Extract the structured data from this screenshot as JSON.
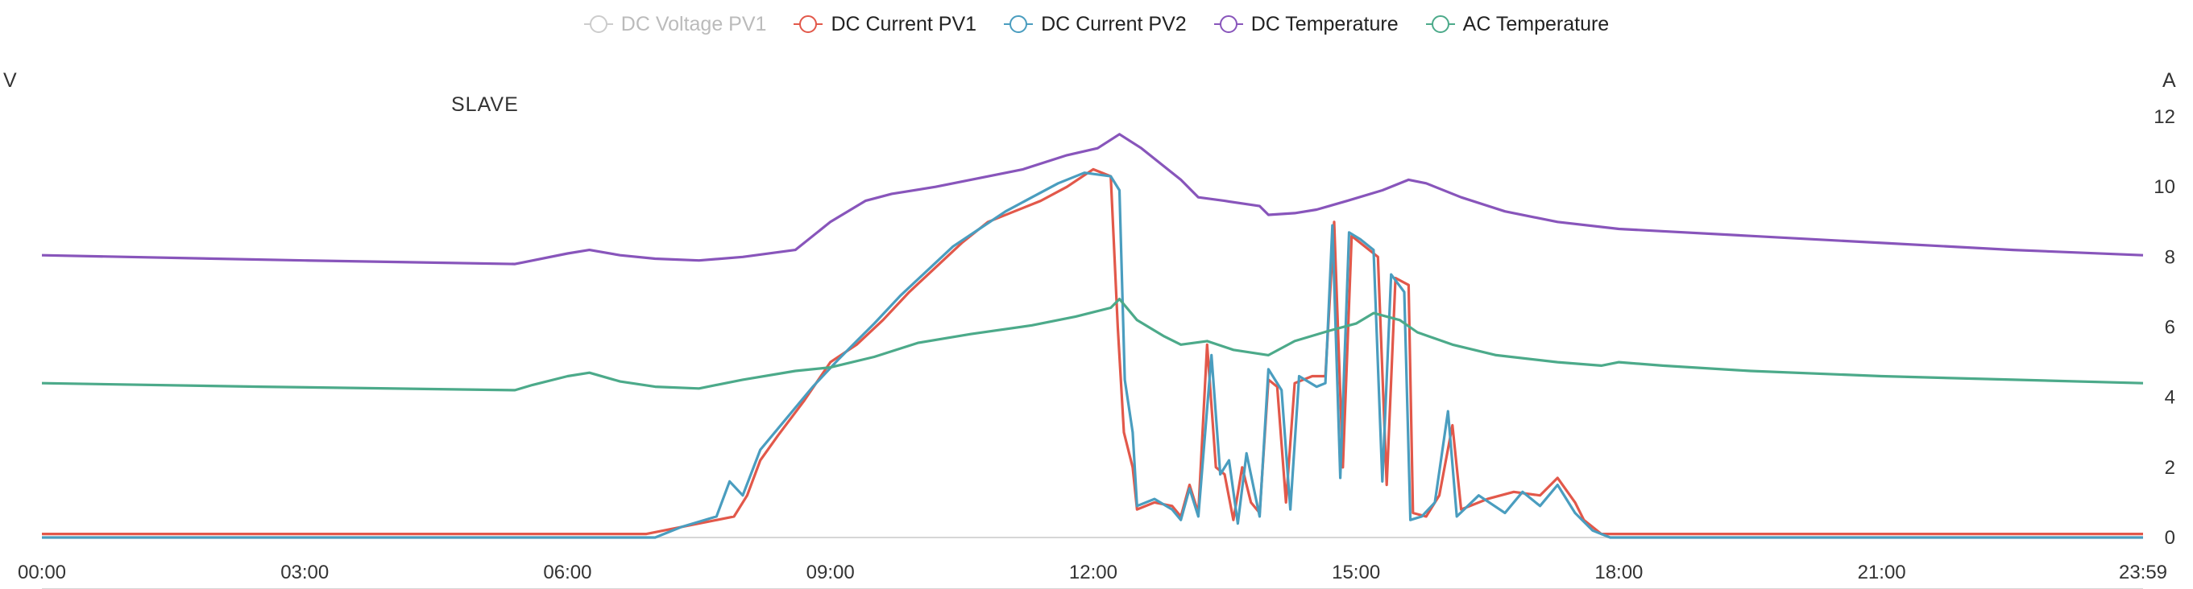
{
  "chart_data": {
    "type": "line",
    "title": "SLAVE",
    "y_left_unit": "V",
    "y_right_unit": "A",
    "x_ticks": [
      "00:00",
      "03:00",
      "06:00",
      "09:00",
      "12:00",
      "15:00",
      "18:00",
      "21:00",
      "23:59"
    ],
    "y_right_ticks": [
      "0",
      "2",
      "4",
      "6",
      "8",
      "10",
      "12"
    ],
    "y_right_range": [
      0,
      12
    ],
    "x_range_hours": [
      0,
      23.983
    ],
    "grid": "x-axis baseline only",
    "legend_position": "top-center",
    "series": [
      {
        "name": "DC Voltage PV1",
        "color": "#cccccc",
        "hidden": true,
        "points": []
      },
      {
        "name": "DC Current PV1",
        "color": "#e2584a",
        "points": [
          [
            0,
            0.1
          ],
          [
            6.9,
            0.1
          ],
          [
            7.2,
            0.25
          ],
          [
            7.5,
            0.4
          ],
          [
            7.9,
            0.6
          ],
          [
            8.05,
            1.2
          ],
          [
            8.2,
            2.2
          ],
          [
            8.4,
            2.9
          ],
          [
            8.7,
            3.9
          ],
          [
            9.0,
            5.0
          ],
          [
            9.3,
            5.5
          ],
          [
            9.6,
            6.2
          ],
          [
            9.9,
            7.0
          ],
          [
            10.2,
            7.7
          ],
          [
            10.5,
            8.4
          ],
          [
            10.8,
            9.0
          ],
          [
            11.1,
            9.3
          ],
          [
            11.4,
            9.6
          ],
          [
            11.7,
            10.0
          ],
          [
            12.0,
            10.5
          ],
          [
            12.2,
            10.3
          ],
          [
            12.28,
            6.0
          ],
          [
            12.35,
            3.0
          ],
          [
            12.45,
            2.0
          ],
          [
            12.5,
            0.8
          ],
          [
            12.7,
            1.0
          ],
          [
            12.9,
            0.9
          ],
          [
            13.0,
            0.6
          ],
          [
            13.1,
            1.5
          ],
          [
            13.2,
            0.7
          ],
          [
            13.3,
            5.5
          ],
          [
            13.4,
            2.0
          ],
          [
            13.5,
            1.8
          ],
          [
            13.6,
            0.5
          ],
          [
            13.7,
            2.0
          ],
          [
            13.8,
            1.0
          ],
          [
            13.9,
            0.7
          ],
          [
            14.0,
            4.5
          ],
          [
            14.1,
            4.3
          ],
          [
            14.2,
            1.0
          ],
          [
            14.3,
            4.4
          ],
          [
            14.5,
            4.6
          ],
          [
            14.65,
            4.6
          ],
          [
            14.75,
            9.0
          ],
          [
            14.85,
            2.0
          ],
          [
            14.95,
            8.6
          ],
          [
            15.1,
            8.3
          ],
          [
            15.25,
            8.0
          ],
          [
            15.35,
            1.5
          ],
          [
            15.45,
            7.4
          ],
          [
            15.6,
            7.2
          ],
          [
            15.65,
            0.7
          ],
          [
            15.8,
            0.6
          ],
          [
            15.95,
            1.2
          ],
          [
            16.1,
            3.2
          ],
          [
            16.2,
            0.8
          ],
          [
            16.5,
            1.1
          ],
          [
            16.8,
            1.3
          ],
          [
            17.1,
            1.2
          ],
          [
            17.3,
            1.7
          ],
          [
            17.5,
            1.0
          ],
          [
            17.6,
            0.5
          ],
          [
            17.8,
            0.1
          ],
          [
            18.2,
            0.1
          ],
          [
            23.983,
            0.1
          ]
        ]
      },
      {
        "name": "DC Current PV2",
        "color": "#4a9dbf",
        "points": [
          [
            0,
            0.0
          ],
          [
            7.0,
            0.0
          ],
          [
            7.3,
            0.3
          ],
          [
            7.7,
            0.6
          ],
          [
            7.85,
            1.6
          ],
          [
            8.0,
            1.2
          ],
          [
            8.2,
            2.5
          ],
          [
            8.5,
            3.4
          ],
          [
            8.8,
            4.3
          ],
          [
            9.1,
            5.1
          ],
          [
            9.3,
            5.6
          ],
          [
            9.5,
            6.1
          ],
          [
            9.8,
            6.9
          ],
          [
            10.1,
            7.6
          ],
          [
            10.4,
            8.3
          ],
          [
            10.7,
            8.8
          ],
          [
            11.0,
            9.3
          ],
          [
            11.3,
            9.7
          ],
          [
            11.6,
            10.1
          ],
          [
            11.9,
            10.4
          ],
          [
            12.2,
            10.3
          ],
          [
            12.3,
            9.9
          ],
          [
            12.36,
            4.5
          ],
          [
            12.45,
            3.0
          ],
          [
            12.5,
            0.9
          ],
          [
            12.7,
            1.1
          ],
          [
            12.9,
            0.8
          ],
          [
            13.0,
            0.5
          ],
          [
            13.1,
            1.4
          ],
          [
            13.2,
            0.6
          ],
          [
            13.35,
            5.2
          ],
          [
            13.45,
            1.8
          ],
          [
            13.55,
            2.2
          ],
          [
            13.65,
            0.4
          ],
          [
            13.75,
            2.4
          ],
          [
            13.9,
            0.6
          ],
          [
            14.0,
            4.8
          ],
          [
            14.15,
            4.2
          ],
          [
            14.25,
            0.8
          ],
          [
            14.35,
            4.6
          ],
          [
            14.55,
            4.3
          ],
          [
            14.65,
            4.4
          ],
          [
            14.73,
            8.9
          ],
          [
            14.82,
            1.7
          ],
          [
            14.92,
            8.7
          ],
          [
            15.05,
            8.5
          ],
          [
            15.2,
            8.2
          ],
          [
            15.3,
            1.6
          ],
          [
            15.4,
            7.5
          ],
          [
            15.55,
            7.0
          ],
          [
            15.62,
            0.5
          ],
          [
            15.75,
            0.6
          ],
          [
            15.9,
            1.0
          ],
          [
            16.05,
            3.6
          ],
          [
            16.15,
            0.6
          ],
          [
            16.4,
            1.2
          ],
          [
            16.7,
            0.7
          ],
          [
            16.9,
            1.3
          ],
          [
            17.1,
            0.9
          ],
          [
            17.3,
            1.5
          ],
          [
            17.5,
            0.7
          ],
          [
            17.7,
            0.2
          ],
          [
            17.9,
            0.0
          ],
          [
            23.983,
            0.0
          ]
        ]
      },
      {
        "name": "DC Temperature",
        "color": "#8855bb",
        "points": [
          [
            0,
            8.05
          ],
          [
            3.0,
            7.9
          ],
          [
            5.4,
            7.8
          ],
          [
            5.5,
            7.85
          ],
          [
            6.0,
            8.1
          ],
          [
            6.25,
            8.2
          ],
          [
            6.6,
            8.05
          ],
          [
            7.0,
            7.95
          ],
          [
            7.5,
            7.9
          ],
          [
            8.0,
            8.0
          ],
          [
            8.6,
            8.2
          ],
          [
            9.0,
            9.0
          ],
          [
            9.4,
            9.6
          ],
          [
            9.7,
            9.8
          ],
          [
            10.2,
            10.0
          ],
          [
            10.7,
            10.25
          ],
          [
            11.2,
            10.5
          ],
          [
            11.7,
            10.9
          ],
          [
            12.05,
            11.1
          ],
          [
            12.3,
            11.5
          ],
          [
            12.55,
            11.1
          ],
          [
            12.8,
            10.6
          ],
          [
            13.0,
            10.2
          ],
          [
            13.2,
            9.7
          ],
          [
            13.5,
            9.6
          ],
          [
            13.9,
            9.45
          ],
          [
            14.0,
            9.2
          ],
          [
            14.3,
            9.25
          ],
          [
            14.55,
            9.35
          ],
          [
            14.9,
            9.6
          ],
          [
            15.3,
            9.9
          ],
          [
            15.6,
            10.2
          ],
          [
            15.8,
            10.1
          ],
          [
            16.2,
            9.7
          ],
          [
            16.7,
            9.3
          ],
          [
            17.3,
            9.0
          ],
          [
            18.0,
            8.8
          ],
          [
            19.5,
            8.6
          ],
          [
            21.0,
            8.4
          ],
          [
            22.5,
            8.2
          ],
          [
            23.983,
            8.05
          ]
        ]
      },
      {
        "name": "AC Temperature",
        "color": "#4caa8a",
        "points": [
          [
            0,
            4.4
          ],
          [
            2.5,
            4.3
          ],
          [
            5.4,
            4.2
          ],
          [
            5.6,
            4.35
          ],
          [
            6.0,
            4.6
          ],
          [
            6.25,
            4.7
          ],
          [
            6.6,
            4.45
          ],
          [
            7.0,
            4.3
          ],
          [
            7.5,
            4.25
          ],
          [
            8.0,
            4.5
          ],
          [
            8.6,
            4.75
          ],
          [
            9.0,
            4.85
          ],
          [
            9.5,
            5.15
          ],
          [
            10.0,
            5.55
          ],
          [
            10.6,
            5.8
          ],
          [
            11.3,
            6.05
          ],
          [
            11.8,
            6.3
          ],
          [
            12.2,
            6.55
          ],
          [
            12.3,
            6.8
          ],
          [
            12.5,
            6.2
          ],
          [
            12.8,
            5.75
          ],
          [
            13.0,
            5.5
          ],
          [
            13.3,
            5.6
          ],
          [
            13.6,
            5.35
          ],
          [
            14.0,
            5.2
          ],
          [
            14.3,
            5.6
          ],
          [
            14.7,
            5.9
          ],
          [
            15.0,
            6.1
          ],
          [
            15.2,
            6.4
          ],
          [
            15.5,
            6.2
          ],
          [
            15.7,
            5.85
          ],
          [
            16.1,
            5.5
          ],
          [
            16.6,
            5.2
          ],
          [
            17.3,
            5.0
          ],
          [
            17.8,
            4.9
          ],
          [
            18.0,
            5.0
          ],
          [
            18.5,
            4.9
          ],
          [
            19.5,
            4.75
          ],
          [
            21.0,
            4.6
          ],
          [
            22.5,
            4.5
          ],
          [
            23.983,
            4.4
          ]
        ]
      }
    ]
  }
}
